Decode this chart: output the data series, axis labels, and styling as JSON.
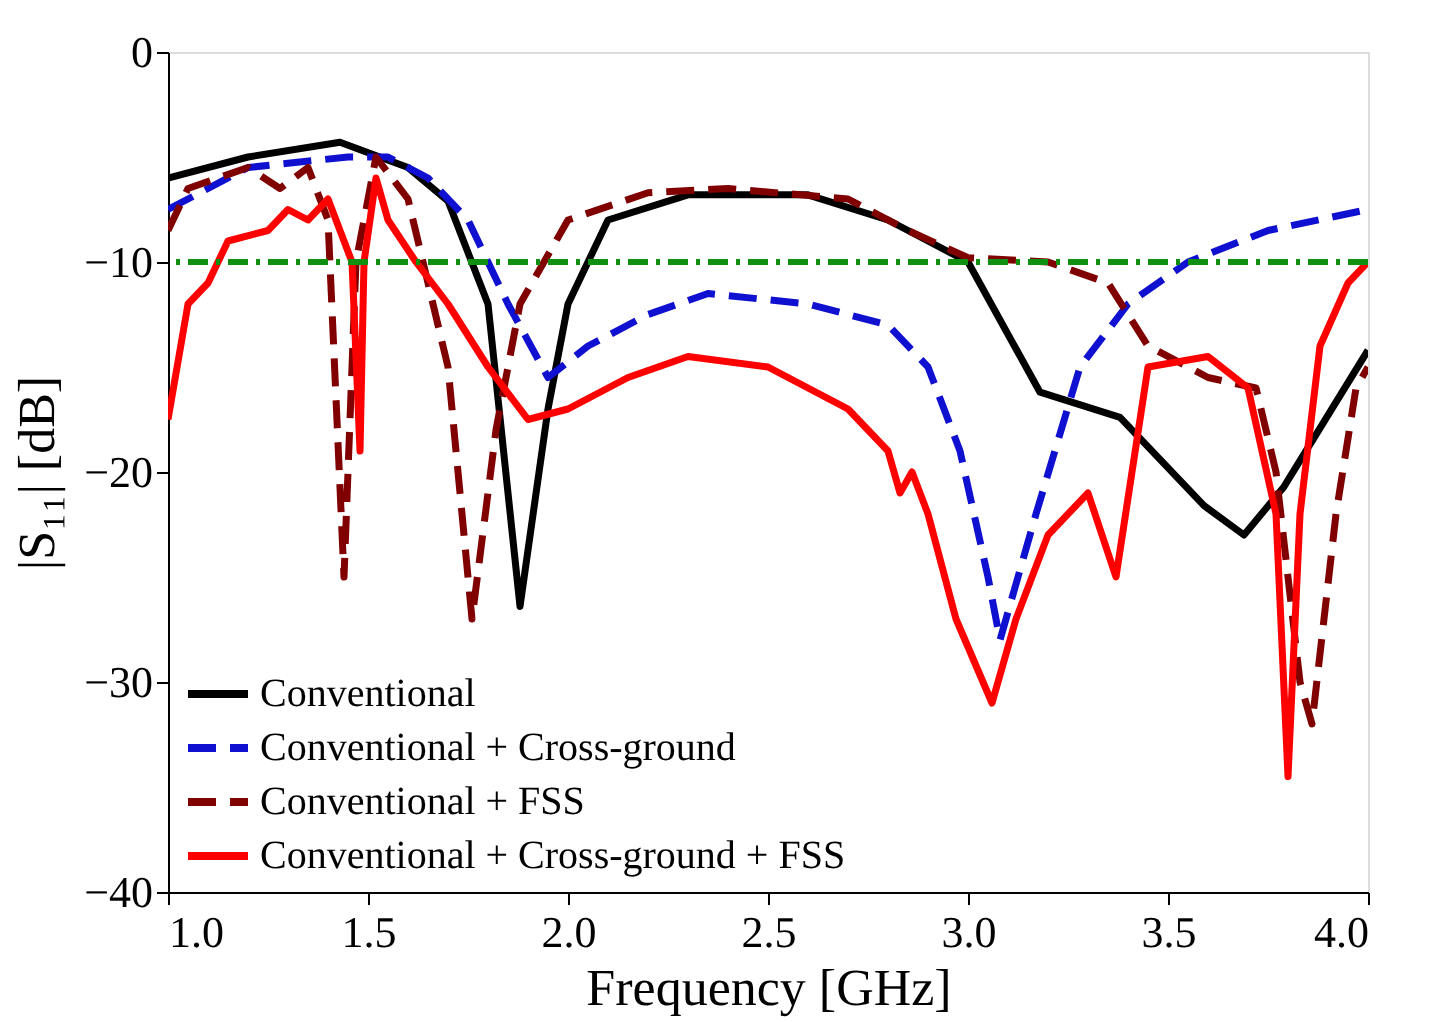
{
  "chart_data": {
    "type": "line",
    "xlabel": "Frequency [GHz]",
    "ylabel": "|S₁₁| [dB]",
    "xlim": [
      1.0,
      4.0
    ],
    "ylim": [
      -40,
      0
    ],
    "xticks": [
      {
        "value": 1.0,
        "label": "1.0"
      },
      {
        "value": 1.5,
        "label": "1.5"
      },
      {
        "value": 2.0,
        "label": "2.0"
      },
      {
        "value": 2.5,
        "label": "2.5"
      },
      {
        "value": 3.0,
        "label": "3.0"
      },
      {
        "value": 3.5,
        "label": "3.5"
      },
      {
        "value": 4.0,
        "label": "4.0"
      }
    ],
    "yticks": [
      0,
      -10,
      -20,
      -30,
      -40
    ],
    "grid": false,
    "legend": "bottom left",
    "marker": "none",
    "ref_lines": [
      {
        "axis": "y",
        "value": -10,
        "color": "#109010",
        "line_style": "dashdot"
      }
    ],
    "series": [
      {
        "name": "Conventional",
        "color": "#000000",
        "line_style": "solid",
        "x": [
          1.0,
          1.2,
          1.43,
          1.6,
          1.7,
          1.8,
          1.88,
          1.95,
          2.0,
          2.1,
          2.3,
          2.6,
          2.8,
          2.9,
          3.0,
          3.18,
          3.38,
          3.59,
          3.69,
          3.79,
          4.0
        ],
        "values": [
          -6,
          -5,
          -4.3,
          -5.5,
          -7.1,
          -12,
          -26.4,
          -17,
          -12,
          -8,
          -6.8,
          -6.8,
          -8,
          -9,
          -10,
          -16.2,
          -17.4,
          -21.6,
          -23,
          -20.7,
          -14.2
        ]
      },
      {
        "name": "Conventional + Cross-ground",
        "color": "#1010d0",
        "line_style": "dashed",
        "x": [
          1.0,
          1.2,
          1.45,
          1.55,
          1.65,
          1.75,
          1.85,
          1.95,
          2.05,
          2.2,
          2.35,
          2.6,
          2.8,
          2.9,
          2.98,
          3.05,
          3.08,
          3.17,
          3.28,
          3.4,
          3.55,
          3.75,
          4.0
        ],
        "values": [
          -7.5,
          -5.5,
          -5,
          -5,
          -6,
          -8,
          -12,
          -15.5,
          -14,
          -12.5,
          -11.5,
          -12,
          -13,
          -15,
          -19,
          -25,
          -28,
          -22,
          -15,
          -12,
          -10,
          -8.5,
          -7.5
        ]
      },
      {
        "name": "Conventional + FSS",
        "color": "#800000",
        "line_style": "dashed",
        "x": [
          1.0,
          1.05,
          1.2,
          1.28,
          1.35,
          1.4,
          1.44,
          1.47,
          1.52,
          1.6,
          1.7,
          1.76,
          1.82,
          1.88,
          2.0,
          2.2,
          2.4,
          2.7,
          2.85,
          3.0,
          3.2,
          3.35,
          3.45,
          3.6,
          3.72,
          3.77,
          3.83,
          3.86,
          3.92,
          3.97,
          4.0
        ],
        "values": [
          -8.5,
          -6.5,
          -5.5,
          -6.5,
          -5.5,
          -8,
          -25,
          -10,
          -5,
          -7,
          -15,
          -27,
          -18,
          -12,
          -8,
          -6.7,
          -6.5,
          -7,
          -8.5,
          -9.8,
          -10,
          -11,
          -14,
          -15.5,
          -16,
          -20,
          -30,
          -32,
          -22,
          -16,
          -15
        ]
      },
      {
        "name": "Conventional + Cross-ground + FSS",
        "color": "#ff0000",
        "line_style": "solid",
        "x": [
          1.0,
          1.05,
          1.1,
          1.15,
          1.25,
          1.3,
          1.35,
          1.4,
          1.44,
          1.46,
          1.48,
          1.49,
          1.52,
          1.55,
          1.62,
          1.7,
          1.8,
          1.9,
          2.0,
          2.15,
          2.3,
          2.5,
          2.7,
          2.8,
          2.83,
          2.86,
          2.9,
          2.97,
          3.06,
          3.12,
          3.2,
          3.3,
          3.37,
          3.45,
          3.6,
          3.7,
          3.77,
          3.8,
          3.83,
          3.88,
          3.95,
          4.0
        ],
        "values": [
          -17.5,
          -12,
          -11,
          -9,
          -8.5,
          -7.5,
          -8,
          -7,
          -9,
          -10,
          -19,
          -10,
          -6,
          -8,
          -10,
          -12,
          -15,
          -17.5,
          -17,
          -15.5,
          -14.5,
          -15,
          -17,
          -19,
          -21,
          -20,
          -22,
          -27,
          -31,
          -27,
          -23,
          -21,
          -25,
          -15,
          -14.5,
          -16,
          -22,
          -34.5,
          -22,
          -14,
          -11,
          -10
        ]
      }
    ]
  }
}
